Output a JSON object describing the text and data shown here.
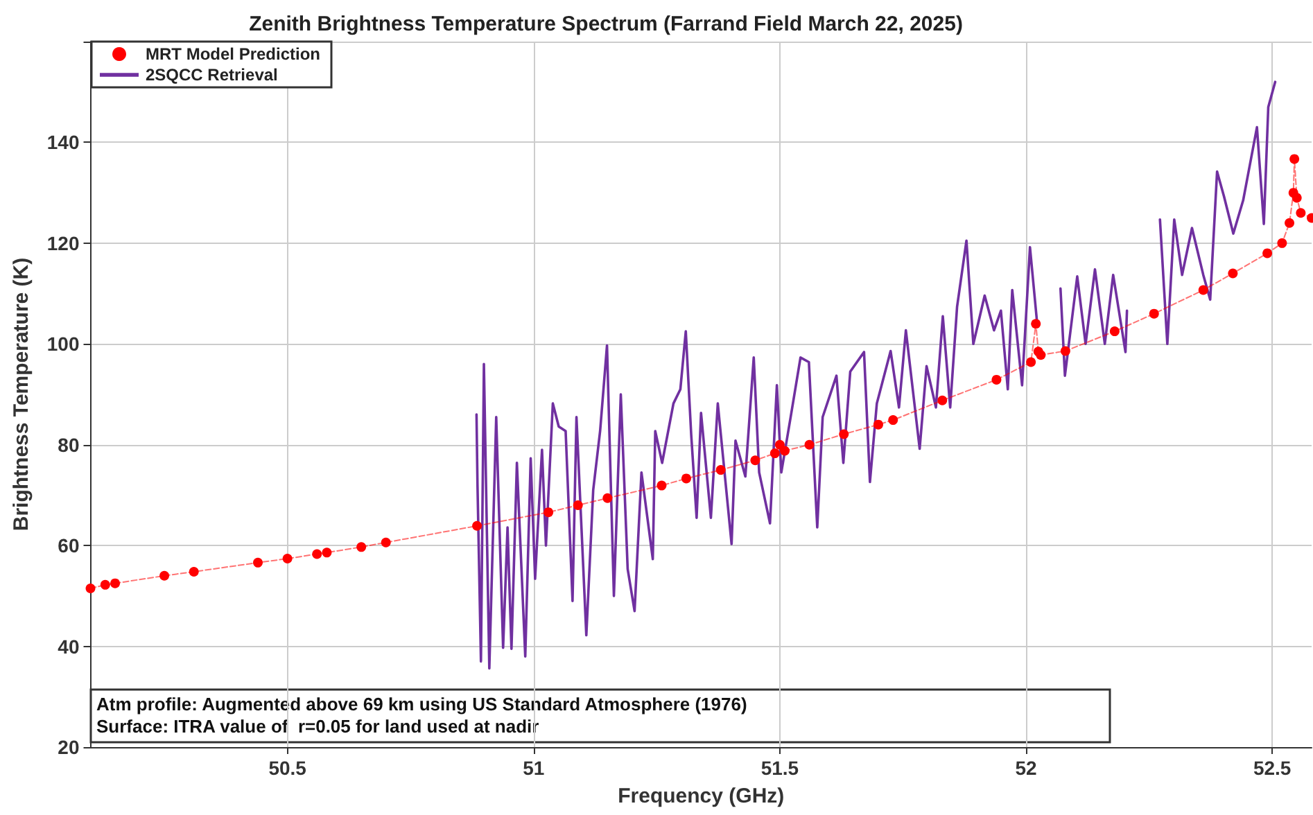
{
  "chart_data": {
    "type": "line",
    "title": "Zenith Brightness Temperature Spectrum (Farrand Field March 22, 2025)",
    "xlabel": "Frequency (GHz)",
    "ylabel": "Brightness Temperature (K)",
    "xlim": [
      50.1,
      52.58
    ],
    "xticks": [
      50.5,
      51,
      51.5,
      52,
      52.5
    ],
    "ylim": [
      20,
      160
    ],
    "yticks": [
      20,
      40,
      60,
      80,
      100,
      120,
      140,
      {
        "value": 160,
        "label": null
      }
    ],
    "grid": true,
    "legend": "top left",
    "annotations": [
      "Atm profile: Augmented above 69 km using US Standard Atmosphere (1976)",
      "Surface: ITRA value of  r=0.05 for land used at nadir"
    ],
    "series": [
      {
        "name": "MRT Model Prediction",
        "color": "#ff0000",
        "marker": "circle",
        "line_style": "dashed",
        "x": [
          50.1,
          50.13,
          50.15,
          50.25,
          50.31,
          50.44,
          50.5,
          50.56,
          50.58,
          50.65,
          50.7,
          50.885,
          51.03,
          51.09,
          51.15,
          51.26,
          51.31,
          51.38,
          51.45,
          51.49,
          51.5,
          51.51,
          51.56,
          51.63,
          51.7,
          51.73,
          51.83,
          51.94,
          52.01,
          52.02,
          52.025,
          52.03,
          52.08,
          52.18,
          52.26,
          52.36,
          52.42,
          52.49,
          52.52,
          52.535,
          52.543,
          52.545,
          52.55,
          52.558,
          52.58
        ],
        "values": [
          51.5,
          52.2,
          52.5,
          54,
          54.8,
          56.6,
          57.4,
          58.3,
          58.6,
          59.7,
          60.6,
          63.9,
          66.6,
          68,
          69.4,
          71.9,
          73.3,
          75,
          76.9,
          78.3,
          80,
          78.8,
          80,
          82.1,
          84,
          84.9,
          88.8,
          92.9,
          96.4,
          104,
          98.5,
          97.8,
          98.6,
          102.5,
          106,
          110.7,
          114,
          118,
          120,
          124,
          130,
          136.7,
          129,
          126,
          125
        ]
      },
      {
        "name": "2SQCC Retrieval",
        "color": "#7030a0",
        "marker": "none",
        "line_style": "solid",
        "x": [
          50.884,
          50.886,
          50.893,
          50.899,
          50.91,
          50.924,
          50.938,
          50.947,
          50.955,
          50.966,
          50.983,
          50.994,
          51.003,
          51.017,
          51.025,
          51.039,
          51.051,
          51.065,
          51.079,
          51.087,
          51.107,
          51.121,
          51.135,
          51.149,
          51.163,
          51.177,
          51.191,
          51.205,
          51.219,
          51.242,
          51.247,
          51.261,
          51.284,
          51.298,
          51.309,
          51.32,
          51.331,
          51.34,
          51.36,
          51.374,
          51.402,
          51.41,
          51.43,
          51.447,
          51.458,
          51.48,
          51.494,
          51.503,
          51.522,
          51.542,
          51.559,
          51.576,
          51.587,
          51.615,
          51.629,
          51.643,
          51.671,
          51.683,
          51.697,
          51.725,
          51.742,
          51.756,
          51.784,
          51.798,
          51.817,
          51.831,
          51.846,
          51.86,
          51.879,
          51.893,
          51.916,
          51.935,
          51.949,
          51.963,
          51.972,
          51.992,
          52.008,
          52.022,
          52.04,
          52.07,
          52.079,
          52.104,
          52.121,
          52.14,
          52.16,
          52.177,
          52.202,
          52.205,
          52.23,
          52.272,
          52.287,
          52.301,
          52.317,
          52.337,
          52.36,
          52.374,
          52.388,
          52.402,
          52.421,
          52.441,
          52.469,
          52.483,
          52.492,
          52.506
        ],
        "values": [
          86,
          72,
          37,
          96,
          35.6,
          85.5,
          39.7,
          63.6,
          39.5,
          76.4,
          38,
          77.3,
          53.4,
          79,
          60,
          88.2,
          83.6,
          82.7,
          49,
          85.5,
          42.2,
          71,
          82.7,
          99.7,
          50,
          90,
          55.3,
          47,
          74.5,
          57.3,
          82.7,
          76.4,
          88.2,
          91,
          102.5,
          82,
          65.5,
          86.3,
          65.5,
          88.2,
          60.3,
          80.8,
          73.7,
          97.3,
          74.5,
          64.4,
          91.8,
          74.5,
          85.5,
          97.3,
          96.4,
          63.6,
          85.5,
          93.7,
          76.4,
          94.5,
          98.4,
          72.6,
          88.2,
          98.6,
          87.4,
          102.7,
          79.2,
          95.6,
          87.4,
          105.5,
          87.4,
          107.4,
          120.5,
          100,
          109.6,
          102.7,
          106.6,
          91,
          110.7,
          91.8,
          119.2,
          104.7,
          null,
          111,
          93.7,
          113.4,
          100,
          114.8,
          100,
          113.7,
          98.4,
          106.6,
          null,
          124.7,
          100,
          124.7,
          113.7,
          123,
          113.7,
          108.8,
          134.2,
          129.3,
          121.9,
          128.5,
          143,
          123.8,
          147,
          152
        ]
      }
    ]
  }
}
